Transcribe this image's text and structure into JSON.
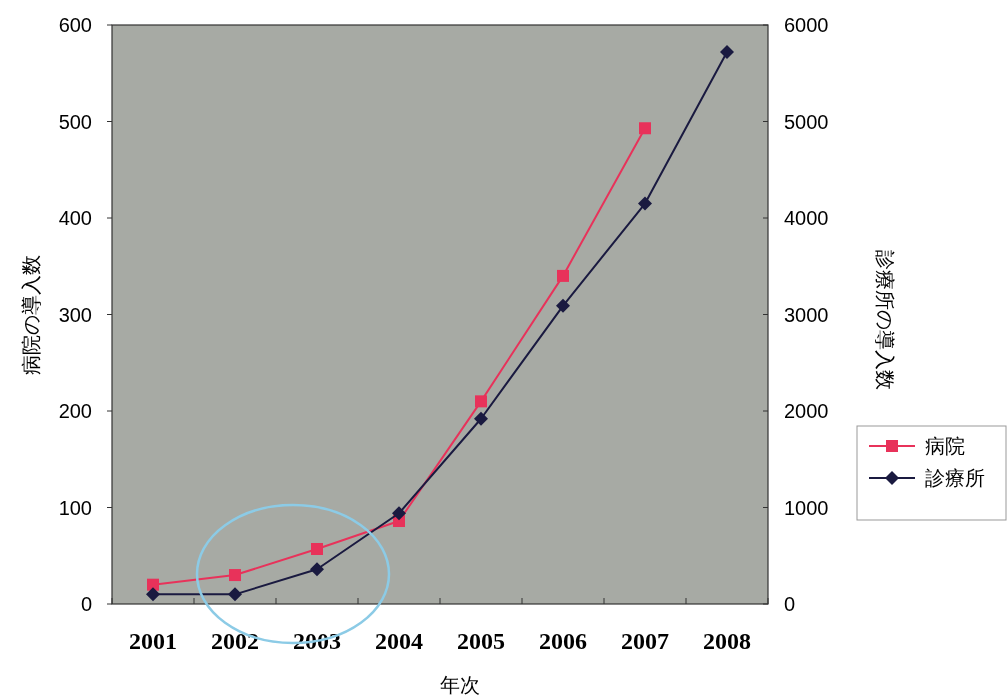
{
  "chart_data": {
    "type": "line",
    "xlabel": "年次",
    "ylabel": "病院の導入数",
    "y2label": "診療所の導入数",
    "categories": [
      "2001",
      "2002",
      "2003",
      "2004",
      "2005",
      "2006",
      "2007",
      "2008"
    ],
    "series": [
      {
        "name": "病院",
        "color": "#e8325a",
        "marker": "square",
        "values": [
          20,
          30,
          57,
          86,
          210,
          340,
          493,
          null
        ]
      },
      {
        "name": "診療所",
        "color": "#1a1a40",
        "marker": "diamond",
        "axis": "y2",
        "values": [
          100,
          100,
          360,
          940,
          1920,
          3090,
          4150,
          5720
        ]
      }
    ],
    "ylim": [
      0,
      600
    ],
    "yticks": [
      0,
      100,
      200,
      300,
      400,
      500,
      600
    ],
    "y2lim": [
      0,
      6000
    ],
    "y2ticks": [
      0,
      1000,
      2000,
      3000,
      4000,
      5000,
      6000
    ],
    "grid": false,
    "legend": "right"
  }
}
